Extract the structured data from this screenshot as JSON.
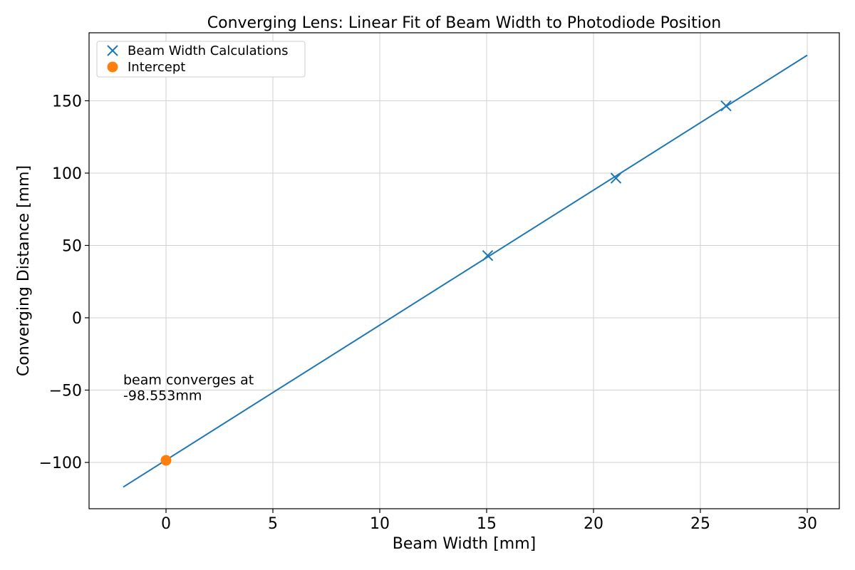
{
  "chart_data": {
    "type": "scatter",
    "title": "Converging Lens: Linear Fit of Beam Width to Photodiode Position",
    "xlabel": "Beam Width [mm]",
    "ylabel": "Converging Distance [mm]",
    "xlim": [
      -3.6,
      31.5
    ],
    "ylim": [
      -132,
      197
    ],
    "xticks": [
      0,
      5,
      10,
      15,
      20,
      25,
      30
    ],
    "xtick_labels": [
      "0",
      "5",
      "10",
      "15",
      "20",
      "25",
      "30"
    ],
    "yticks": [
      -100,
      -50,
      0,
      50,
      100,
      150
    ],
    "ytick_labels": [
      "−100",
      "−50",
      "0",
      "50",
      "100",
      "150"
    ],
    "grid": true,
    "legend_position": "top-left",
    "series": [
      {
        "name": "Beam Width Calculations",
        "kind": "scatter",
        "marker": "x",
        "color": "#1f77b4",
        "points": [
          {
            "x": 15.05,
            "y": 43
          },
          {
            "x": 21.05,
            "y": 96.5
          },
          {
            "x": 26.2,
            "y": 146.5
          }
        ]
      },
      {
        "name": "Intercept",
        "kind": "scatter",
        "marker": "o",
        "color": "#ff7f0e",
        "points": [
          {
            "x": 0,
            "y": -98.553
          }
        ]
      },
      {
        "kind": "line",
        "color": "#1f77b4",
        "points": [
          {
            "x": -2,
            "y": -117
          },
          {
            "x": 30,
            "y": 181.5
          }
        ]
      }
    ],
    "annotations": [
      {
        "text_lines": [
          "beam converges at",
          "-98.553mm"
        ],
        "x": -2,
        "y": -46
      }
    ]
  }
}
